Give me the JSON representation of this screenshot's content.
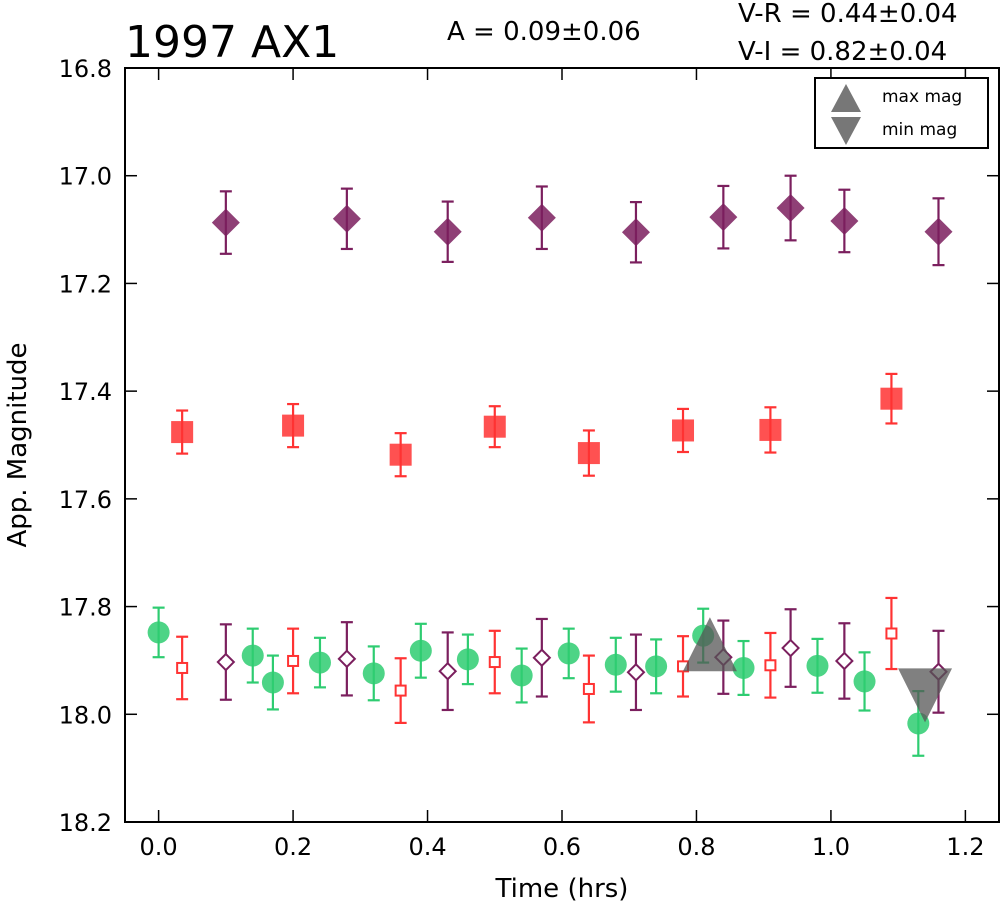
{
  "chart_data": {
    "type": "scatter",
    "title": "1997 AX1",
    "xlabel": "Time (hrs)",
    "ylabel": "App. Magnitude",
    "xlim": [
      -0.05,
      1.25
    ],
    "ylim": [
      18.2,
      16.8
    ],
    "y_inverted": true,
    "x_ticks": [
      "0.0",
      "0.2",
      "0.4",
      "0.6",
      "0.8",
      "1.0",
      "1.2"
    ],
    "y_ticks": [
      "16.8",
      "17.0",
      "17.2",
      "17.4",
      "17.6",
      "17.8",
      "18.0",
      "18.2"
    ],
    "annotations": {
      "amplitude": "A  = 0.09±0.06",
      "vr": "V-R = 0.44±0.04",
      "vi": "V-I  = 0.82±0.04"
    },
    "legend": {
      "placement": "top-right",
      "entries": [
        {
          "label": "max mag",
          "marker": "triangle-up"
        },
        {
          "label": "min mag",
          "marker": "triangle-down"
        }
      ]
    },
    "colors": {
      "green": "#2ecc71",
      "red": "#ff3333",
      "purple": "#7b1f5e",
      "gray": "#555555"
    },
    "series": [
      {
        "marker": "diamond-filled",
        "color": "purple",
        "x": [
          0.1,
          0.28,
          0.43,
          0.57,
          0.71,
          0.84,
          0.94,
          1.02,
          1.16
        ],
        "y": [
          17.087,
          17.08,
          17.104,
          17.078,
          17.105,
          17.077,
          17.06,
          17.084,
          17.104
        ],
        "err": [
          0.058,
          0.056,
          0.056,
          0.058,
          0.056,
          0.058,
          0.06,
          0.058,
          0.062
        ]
      },
      {
        "marker": "square-filled",
        "color": "red",
        "x": [
          0.035,
          0.2,
          0.36,
          0.5,
          0.64,
          0.78,
          0.91,
          1.09
        ],
        "y": [
          17.476,
          17.464,
          17.518,
          17.466,
          17.515,
          17.473,
          17.472,
          17.414
        ],
        "err": [
          0.04,
          0.04,
          0.04,
          0.038,
          0.042,
          0.04,
          0.042,
          0.046
        ]
      },
      {
        "marker": "circle-filled",
        "color": "green",
        "x": [
          0.0,
          0.14,
          0.17,
          0.24,
          0.32,
          0.39,
          0.46,
          0.54,
          0.61,
          0.68,
          0.74,
          0.81,
          0.87,
          0.98,
          1.05,
          1.13
        ],
        "y": [
          17.848,
          17.891,
          17.941,
          17.904,
          17.924,
          17.882,
          17.898,
          17.928,
          17.887,
          17.908,
          17.911,
          17.854,
          17.914,
          17.91,
          17.939,
          18.017
        ],
        "err": [
          0.046,
          0.05,
          0.05,
          0.046,
          0.05,
          0.05,
          0.046,
          0.05,
          0.046,
          0.05,
          0.05,
          0.05,
          0.05,
          0.05,
          0.054,
          0.06
        ]
      },
      {
        "marker": "square-open",
        "color": "red",
        "x": [
          0.035,
          0.2,
          0.36,
          0.5,
          0.64,
          0.78,
          0.91,
          1.09
        ],
        "y": [
          17.914,
          17.901,
          17.956,
          17.903,
          17.953,
          17.911,
          17.909,
          17.85
        ],
        "err": [
          0.058,
          0.06,
          0.06,
          0.058,
          0.062,
          0.056,
          0.06,
          0.066
        ]
      },
      {
        "marker": "diamond-open",
        "color": "purple",
        "x": [
          0.1,
          0.28,
          0.43,
          0.57,
          0.71,
          0.84,
          0.94,
          1.02,
          1.16
        ],
        "y": [
          17.903,
          17.897,
          17.92,
          17.895,
          17.922,
          17.894,
          17.877,
          17.901,
          17.921
        ],
        "err": [
          0.07,
          0.068,
          0.072,
          0.072,
          0.07,
          0.068,
          0.072,
          0.07,
          0.076
        ]
      }
    ],
    "extrema": [
      {
        "label": "max mag",
        "marker": "triangle-up",
        "x": 0.82,
        "y": 17.87
      },
      {
        "label": "min mag",
        "marker": "triangle-down",
        "x": 1.14,
        "y": 17.965
      }
    ]
  }
}
